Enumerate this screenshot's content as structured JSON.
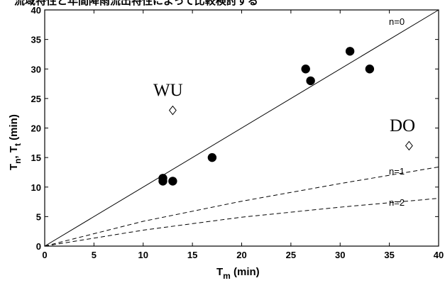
{
  "header_fragment": "流域特性と年間降雨流出特性によって比較検討する",
  "chart_data": {
    "type": "scatter",
    "xlabel": {
      "main": "T",
      "sub": "m",
      "suffix": " (min)"
    },
    "ylabel": {
      "main1": "T",
      "sub1": "n",
      "sep": ", T",
      "sub2": "t",
      "suffix": " (min)"
    },
    "xlim": [
      0,
      40
    ],
    "ylim": [
      0,
      40
    ],
    "xticks": [
      "0",
      "5",
      "10",
      "15",
      "20",
      "25",
      "30",
      "35",
      "40"
    ],
    "yticks": [
      "0",
      "5",
      "10",
      "15",
      "20",
      "25",
      "30",
      "35",
      "40"
    ],
    "grid": false,
    "series": [
      {
        "marker": "filled-circle",
        "points": [
          {
            "x": 12,
            "y": 11.5
          },
          {
            "x": 12,
            "y": 11
          },
          {
            "x": 13,
            "y": 11
          },
          {
            "x": 17,
            "y": 15
          },
          {
            "x": 26.5,
            "y": 30
          },
          {
            "x": 27,
            "y": 28
          },
          {
            "x": 31,
            "y": 33
          },
          {
            "x": 33,
            "y": 30
          }
        ]
      },
      {
        "name": "WU",
        "marker": "open-diamond",
        "points": [
          {
            "x": 13,
            "y": 23
          }
        ]
      },
      {
        "name": "DO",
        "marker": "open-diamond",
        "points": [
          {
            "x": 37,
            "y": 17
          }
        ]
      }
    ],
    "lines": [
      {
        "name": "n=0",
        "style": "solid",
        "points": [
          {
            "x": 0,
            "y": 0
          },
          {
            "x": 40,
            "y": 40
          }
        ]
      },
      {
        "name": "n=1",
        "style": "dashed",
        "points": [
          {
            "x": 0,
            "y": 0
          },
          {
            "x": 10,
            "y": 4.2
          },
          {
            "x": 20,
            "y": 7.6
          },
          {
            "x": 30,
            "y": 10.6
          },
          {
            "x": 40,
            "y": 13.4
          }
        ]
      },
      {
        "name": "n=2",
        "style": "dashed",
        "points": [
          {
            "x": 0,
            "y": 0
          },
          {
            "x": 10,
            "y": 2.7
          },
          {
            "x": 20,
            "y": 4.9
          },
          {
            "x": 30,
            "y": 6.6
          },
          {
            "x": 40,
            "y": 8.1
          }
        ]
      }
    ]
  }
}
